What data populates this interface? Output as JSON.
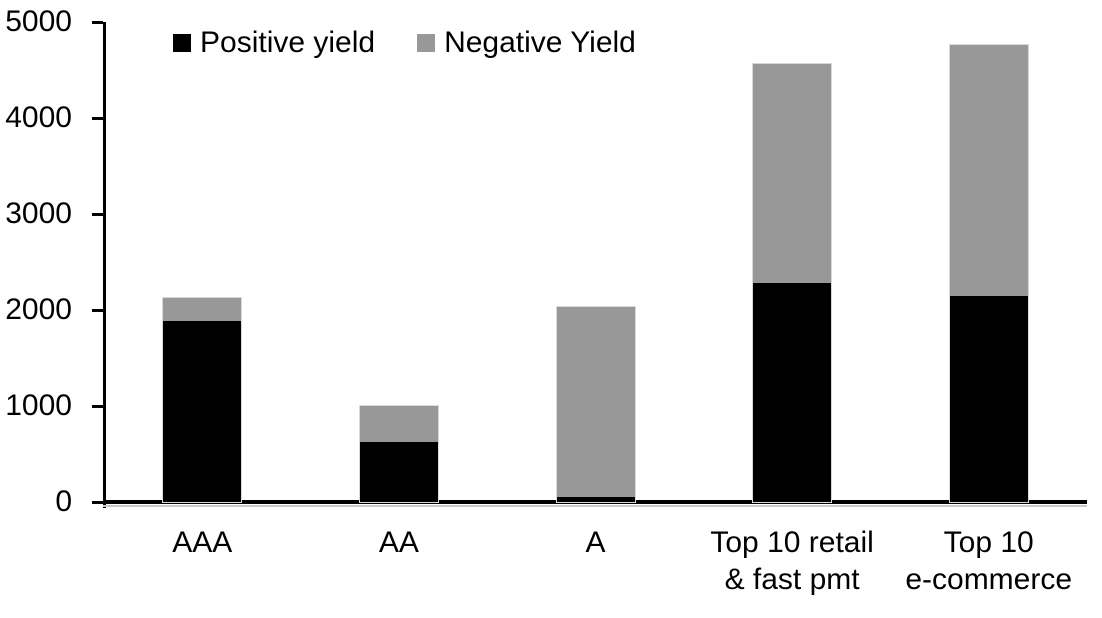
{
  "chart_data": {
    "type": "bar",
    "stacked": true,
    "title": "",
    "xlabel": "",
    "ylabel": "",
    "categories": [
      "AAA",
      "AA",
      "A",
      "Top 10 retail\n& fast pmt",
      "Top 10\ne-commerce"
    ],
    "series": [
      {
        "name": "Positive yield",
        "color": "#000000",
        "values": [
          1890,
          620,
          50,
          2280,
          2150
        ]
      },
      {
        "name": "Negative Yield",
        "color": "#989898",
        "values": [
          230,
          380,
          1980,
          2280,
          2610
        ]
      }
    ],
    "ylim": [
      0,
      5000
    ],
    "yticks": [
      0,
      1000,
      2000,
      3000,
      4000,
      5000
    ],
    "grid": false,
    "legend_position": "top-left-inside"
  },
  "colors": {
    "axis": "#000000",
    "bar_border": "#d9d9d9",
    "background": "#ffffff"
  }
}
